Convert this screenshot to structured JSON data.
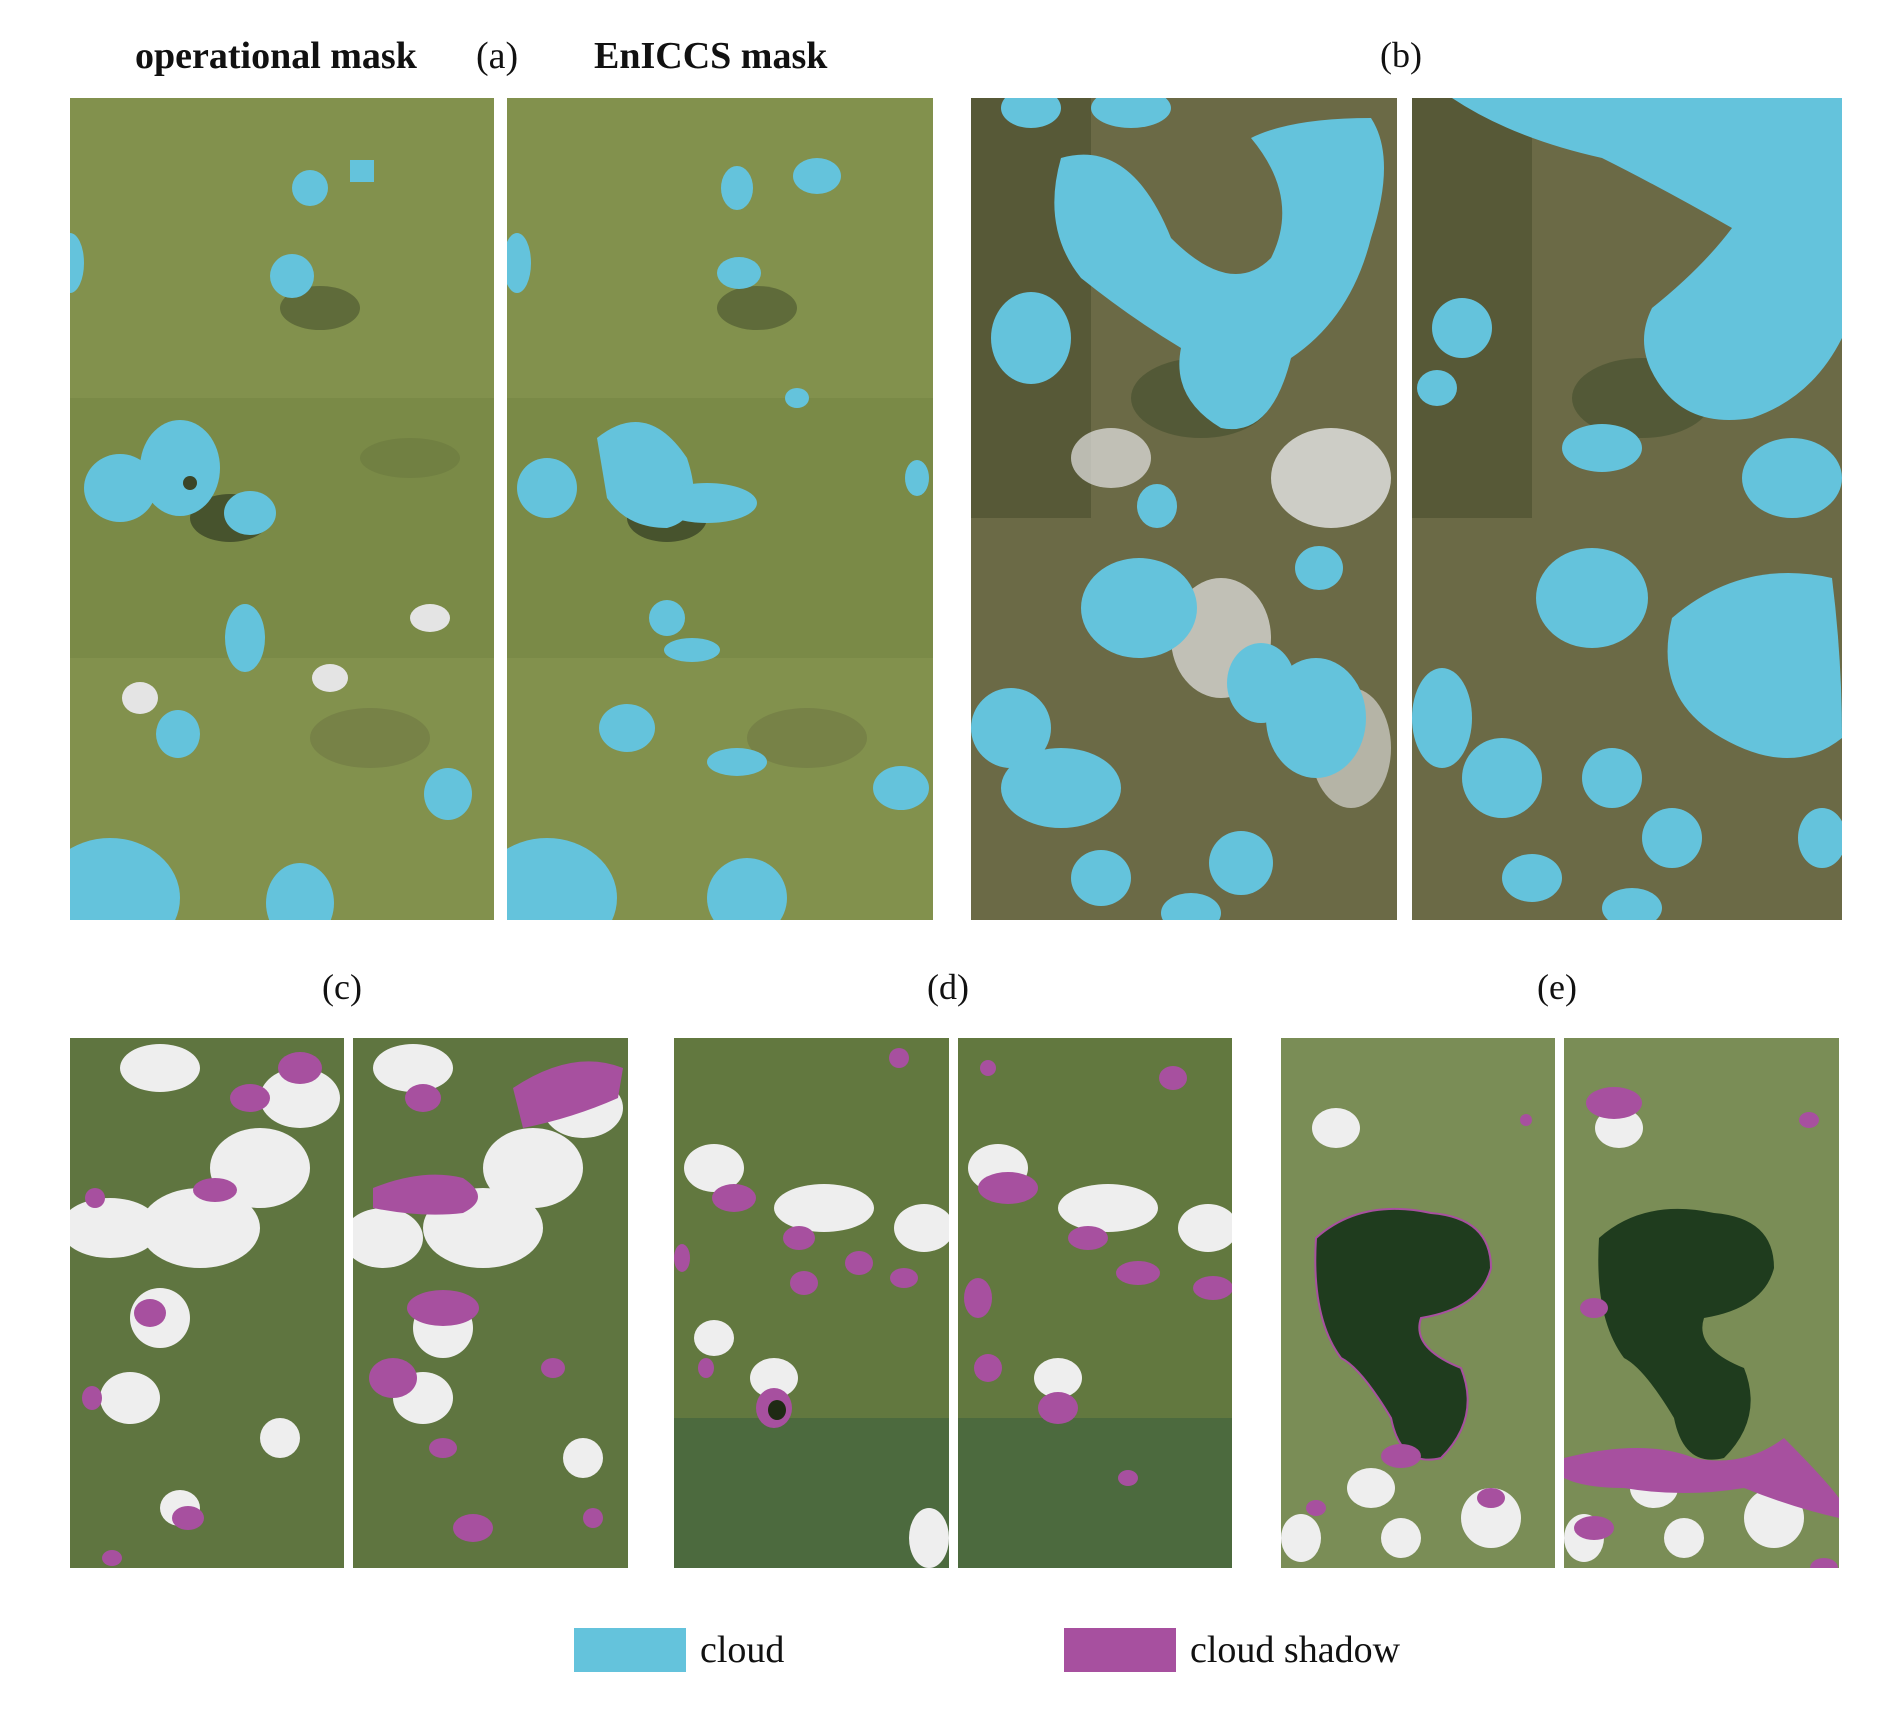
{
  "headers": {
    "operational_mask": "operational mask",
    "eniccs_mask": "EnICCS mask"
  },
  "panel_labels": {
    "a": "(a)",
    "b": "(b)",
    "c": "(c)",
    "d": "(d)",
    "e": "(e)"
  },
  "legend": {
    "cloud": {
      "label": "cloud",
      "color": "#64c3dc"
    },
    "cloud_shadow": {
      "label": "cloud shadow",
      "color": "#a7509f"
    }
  },
  "colors": {
    "vegetation": "#7d8a4a",
    "dark_forest": "#3e4a2c",
    "lake": "#1e3a1e",
    "white_cloud": "#eeeeee"
  }
}
